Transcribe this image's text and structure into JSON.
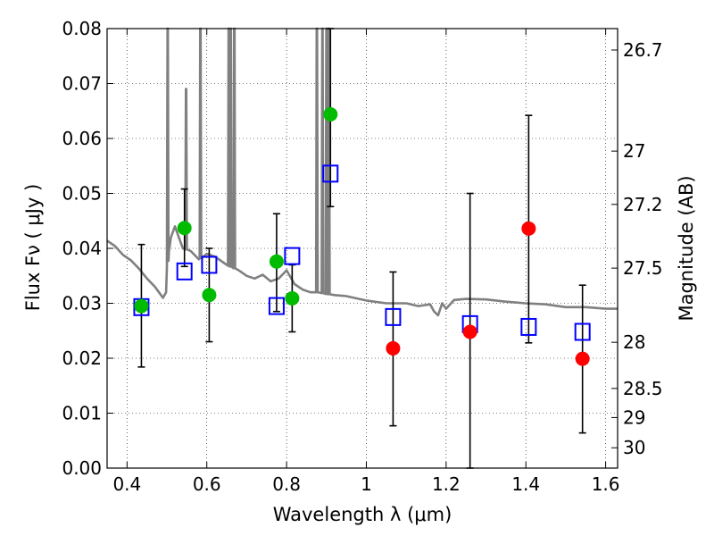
{
  "chart_data": {
    "type": "scatter",
    "xlabel": "Wavelength  λ (μm)",
    "ylabel": "Flux  Fν  ( μJy )",
    "y2label": "Magnitude (AB)",
    "xlim": [
      0.35,
      1.63
    ],
    "ylim": [
      0.0,
      0.08
    ],
    "x_ticks": [
      0.4,
      0.6,
      0.8,
      1.0,
      1.2,
      1.4,
      1.6
    ],
    "x_tick_labels": [
      "0.4",
      "0.6",
      "0.8",
      "1",
      "1.2",
      "1.4",
      "1.6"
    ],
    "y_ticks": [
      0.0,
      0.01,
      0.02,
      0.03,
      0.04,
      0.05,
      0.06,
      0.07,
      0.08
    ],
    "y_tick_labels": [
      "0.00",
      "0.01",
      "0.02",
      "0.03",
      "0.04",
      "0.05",
      "0.06",
      "0.07",
      "0.08"
    ],
    "y2_tick_labels": [
      {
        "label": "26.7",
        "flux": 0.0761
      },
      {
        "label": "27",
        "flux": 0.0577
      },
      {
        "label": "27.2",
        "flux": 0.048
      },
      {
        "label": "27.5",
        "flux": 0.0364
      },
      {
        "label": "28",
        "flux": 0.0229
      },
      {
        "label": "28.5",
        "flux": 0.0145
      },
      {
        "label": "29",
        "flux": 0.0092
      },
      {
        "label": "30",
        "flux": 0.0037
      }
    ],
    "grid": true,
    "colors": {
      "model": "#808080",
      "detected": "#00bb00",
      "undetected": "#ff0000",
      "model_flux": "#0000ff",
      "errorbar": "#000000"
    },
    "model_spectrum": [
      [
        0.35,
        0.0414
      ],
      [
        0.37,
        0.0404
      ],
      [
        0.38,
        0.0396
      ],
      [
        0.39,
        0.0388
      ],
      [
        0.41,
        0.0378
      ],
      [
        0.43,
        0.0363
      ],
      [
        0.45,
        0.0345
      ],
      [
        0.47,
        0.033
      ],
      [
        0.48,
        0.032
      ],
      [
        0.49,
        0.031
      ],
      [
        0.498,
        0.032
      ],
      [
        0.5,
        0.0365
      ],
      [
        0.505,
        0.0395
      ],
      [
        0.51,
        0.042
      ],
      [
        0.52,
        0.044
      ],
      [
        0.53,
        0.042
      ],
      [
        0.54,
        0.04
      ],
      [
        0.56,
        0.0395
      ],
      [
        0.58,
        0.038
      ],
      [
        0.6,
        0.039
      ],
      [
        0.62,
        0.0385
      ],
      [
        0.65,
        0.037
      ],
      [
        0.68,
        0.036
      ],
      [
        0.7,
        0.035
      ],
      [
        0.72,
        0.0345
      ],
      [
        0.74,
        0.0352
      ],
      [
        0.76,
        0.034
      ],
      [
        0.78,
        0.0345
      ],
      [
        0.8,
        0.036
      ],
      [
        0.82,
        0.0335
      ],
      [
        0.84,
        0.0325
      ],
      [
        0.86,
        0.032
      ],
      [
        0.88,
        0.032
      ],
      [
        0.9,
        0.0317
      ],
      [
        0.92,
        0.0315
      ],
      [
        0.95,
        0.0313
      ],
      [
        1.0,
        0.0305
      ],
      [
        1.05,
        0.03
      ],
      [
        1.1,
        0.03
      ],
      [
        1.13,
        0.0295
      ],
      [
        1.16,
        0.0298
      ],
      [
        1.17,
        0.0285
      ],
      [
        1.18,
        0.0278
      ],
      [
        1.19,
        0.03
      ],
      [
        1.2,
        0.029
      ],
      [
        1.22,
        0.0306
      ],
      [
        1.25,
        0.0308
      ],
      [
        1.3,
        0.0307
      ],
      [
        1.35,
        0.0303
      ],
      [
        1.4,
        0.03
      ],
      [
        1.45,
        0.0298
      ],
      [
        1.5,
        0.0293
      ],
      [
        1.55,
        0.0293
      ],
      [
        1.6,
        0.029
      ],
      [
        1.63,
        0.029
      ]
    ],
    "emission_lines": [
      {
        "x": 0.502,
        "peak": 0.08
      },
      {
        "x": 0.548,
        "peak": 0.069
      },
      {
        "x": 0.584,
        "peak": 0.08
      },
      {
        "x": 0.655,
        "peak": 0.08
      },
      {
        "x": 0.66,
        "peak": 0.08
      },
      {
        "x": 0.669,
        "peak": 0.08
      },
      {
        "x": 0.876,
        "peak": 0.08
      },
      {
        "x": 0.89,
        "peak": 0.08
      },
      {
        "x": 0.9,
        "peak": 0.08
      },
      {
        "x": 0.906,
        "peak": 0.08
      }
    ],
    "observed": [
      {
        "x": 0.436,
        "y": 0.0295,
        "err_low": 0.0184,
        "err_high": 0.0407,
        "color": "green"
      },
      {
        "x": 0.544,
        "y": 0.0437,
        "err_low": 0.0367,
        "err_high": 0.0508,
        "color": "green"
      },
      {
        "x": 0.606,
        "y": 0.0315,
        "err_low": 0.023,
        "err_high": 0.04,
        "color": "green"
      },
      {
        "x": 0.775,
        "y": 0.0376,
        "err_low": 0.0285,
        "err_high": 0.0463,
        "color": "green"
      },
      {
        "x": 0.814,
        "y": 0.0309,
        "err_low": 0.0248,
        "err_high": 0.037,
        "color": "green"
      },
      {
        "x": 0.91,
        "y": 0.0644,
        "err_low": 0.0476,
        "err_high": 0.08,
        "color": "green"
      },
      {
        "x": 1.067,
        "y": 0.0218,
        "err_low": 0.0077,
        "err_high": 0.0357,
        "color": "red"
      },
      {
        "x": 1.26,
        "y": 0.0248,
        "err_low": 0.0,
        "err_high": 0.05,
        "color": "red"
      },
      {
        "x": 1.407,
        "y": 0.0436,
        "err_low": 0.0228,
        "err_high": 0.0642,
        "color": "red"
      },
      {
        "x": 1.542,
        "y": 0.0199,
        "err_low": 0.0064,
        "err_high": 0.0333,
        "color": "red"
      }
    ],
    "model_photometry": [
      {
        "x": 0.436,
        "y": 0.0293
      },
      {
        "x": 0.544,
        "y": 0.0358
      },
      {
        "x": 0.606,
        "y": 0.037
      },
      {
        "x": 0.775,
        "y": 0.0295
      },
      {
        "x": 0.814,
        "y": 0.0386
      },
      {
        "x": 0.91,
        "y": 0.0536
      },
      {
        "x": 1.067,
        "y": 0.0275
      },
      {
        "x": 1.26,
        "y": 0.0262
      },
      {
        "x": 1.407,
        "y": 0.0257
      },
      {
        "x": 1.542,
        "y": 0.0248
      }
    ]
  }
}
